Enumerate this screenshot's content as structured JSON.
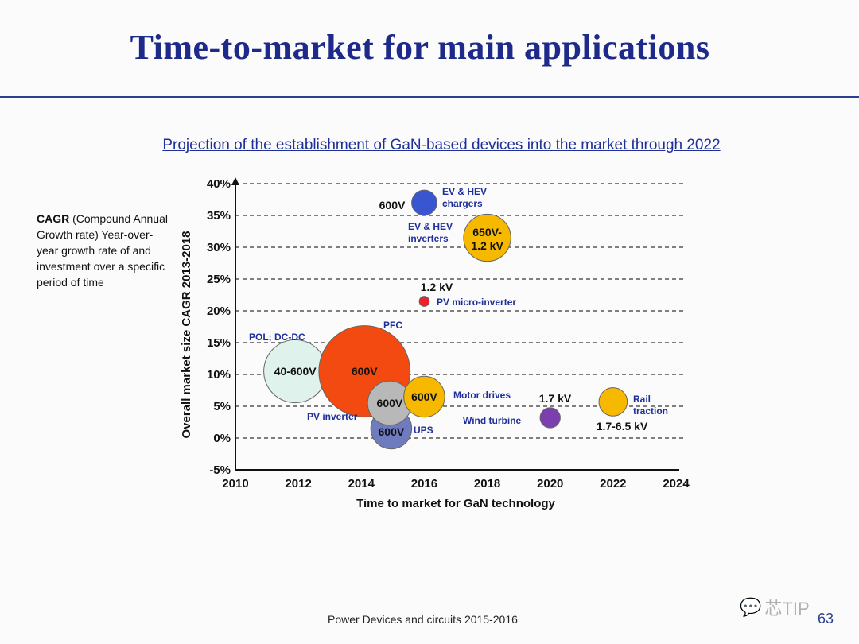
{
  "slide": {
    "title": "Time-to-market for main applications",
    "footer": "Power Devices and circuits 2015-2016",
    "page_number": "63",
    "watermark_text": "芯TIP",
    "watermark_icon": "wechat-icon"
  },
  "cagr_note": {
    "term": "CAGR",
    "text": " (Compound Annual Growth rate) Year-over-year growth rate of and investment over a specific period of time"
  },
  "chart_data": {
    "type": "scatter",
    "title": "Projection of the establishment of GaN-based devices into the market through 2022",
    "xlabel": "Time to market for GaN technology",
    "ylabel": "Overall market size CAGR 2013-2018",
    "xlim": [
      2010,
      2024
    ],
    "ylim": [
      -5,
      40
    ],
    "x_ticks": [
      "2010",
      "2012",
      "2014",
      "2016",
      "2018",
      "2020",
      "2022",
      "2024"
    ],
    "x_tick_values": [
      2010,
      2012,
      2014,
      2016,
      2018,
      2020,
      2022,
      2024
    ],
    "y_ticks": [
      "-5%",
      "0%",
      "5%",
      "10%",
      "15%",
      "20%",
      "25%",
      "30%",
      "35%",
      "40%"
    ],
    "y_tick_values": [
      -5,
      0,
      5,
      10,
      15,
      20,
      25,
      30,
      35,
      40
    ],
    "grid": "horizontal-dashed",
    "bubbles": [
      {
        "name": "POL; DC-DC",
        "x": 2011.9,
        "y": 10.5,
        "r": 1.0,
        "label": "40-600V",
        "color": "#dff2ec"
      },
      {
        "name": "PFC",
        "x": 2014.1,
        "y": 10.5,
        "r": 1.45,
        "label": "600V",
        "color": "#f24a10"
      },
      {
        "name": "PV inverter",
        "x": 2014.9,
        "y": 5.5,
        "r": 0.7,
        "label": "600V",
        "color": "#b8b8b8"
      },
      {
        "name": "UPS",
        "x": 2014.95,
        "y": 1.5,
        "r": 0.65,
        "label": "600V",
        "color": "#6f7bbf"
      },
      {
        "name": "Motor drives",
        "x": 2016.0,
        "y": 6.5,
        "r": 0.65,
        "label": "600V",
        "color": "#f7b800"
      },
      {
        "name": "EV & HEV chargers",
        "x": 2016.0,
        "y": 37.0,
        "r": 0.4,
        "label": "600V",
        "color": "#3a55d0"
      },
      {
        "name": "EV & HEV inverters",
        "x": 2018.0,
        "y": 31.5,
        "r": 0.75,
        "label": "650V-\n1.2 kV",
        "color": "#f7b800"
      },
      {
        "name": "PV micro-inverter",
        "x": 2016.0,
        "y": 21.5,
        "r": 0.16,
        "label": "1.2 kV",
        "color": "#f0202a"
      },
      {
        "name": "Wind turbine",
        "x": 2020.0,
        "y": 3.2,
        "r": 0.32,
        "label": "1.7 kV",
        "color": "#7b3fb0"
      },
      {
        "name": "Rail traction",
        "x": 2022.0,
        "y": 5.7,
        "r": 0.45,
        "label": "1.7-6.5 kV",
        "color": "#f7b800"
      }
    ]
  }
}
